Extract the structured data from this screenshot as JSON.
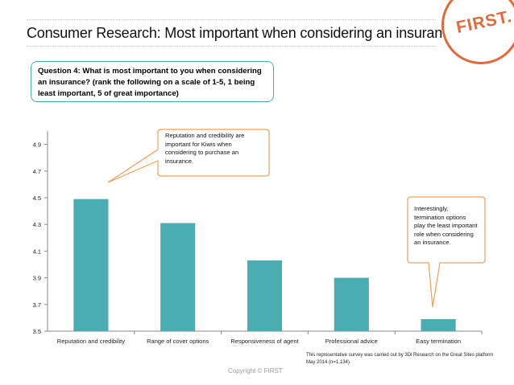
{
  "header": {
    "title": "Consumer Research: Most important when considering an insurance",
    "logo_text": "FIRST."
  },
  "question": {
    "text": "Question 4: What is most important to you when considering an insurance? (rank the following on a scale of 1-5, 1 being least important, 5 of great importance)"
  },
  "callouts": [
    {
      "text": "Reputation and credibility are important for Kiwis when considering to purchase an insurance."
    },
    {
      "text": "Interestingly, termination options play the least important role when considering an insurance."
    }
  ],
  "footer": {
    "copyright": "Copyright © FIRST",
    "footnote": "This representative survey was carried out by 3Di Research on the Great Sites platform May 2014 (n=1,134)."
  },
  "colors": {
    "bar": "#4aadb1",
    "callout_border": "#f0a05a",
    "question_border": "#4aadb1",
    "logo": "#e26a3a"
  },
  "chart_data": {
    "type": "bar",
    "title": "",
    "xlabel": "",
    "ylabel": "",
    "categories": [
      "Reputation and credibility",
      "Range of cover options",
      "Responsiveness of agent",
      "Professional advice",
      "Easy termination"
    ],
    "values": [
      4.49,
      4.31,
      4.03,
      3.9,
      3.59
    ],
    "ylim": [
      3.5,
      5.0
    ],
    "yticks": [
      "3.5",
      "3.7",
      "3.9",
      "4.1",
      "4.3",
      "4.5",
      "4.7",
      "4.9"
    ],
    "grid": false,
    "legend": "none"
  }
}
